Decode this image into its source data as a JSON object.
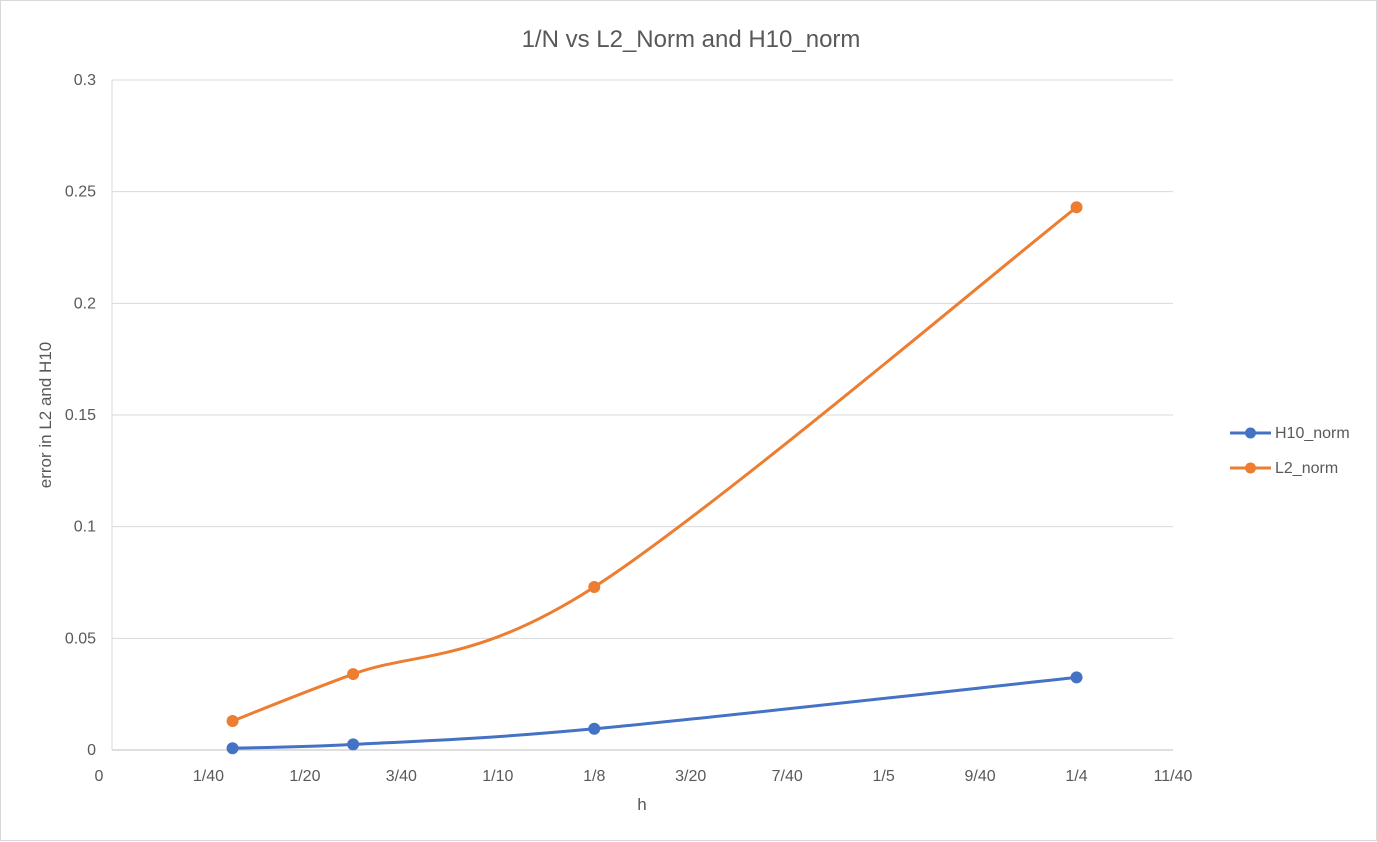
{
  "chart_data": {
    "type": "line",
    "title": "1/N vs L2_Norm and H10_norm",
    "xlabel": "h",
    "ylabel": "error in L2 and H10",
    "xlim": [
      0,
      0.275
    ],
    "ylim": [
      0,
      0.3
    ],
    "x_ticks": [
      {
        "value": 0,
        "label": "0"
      },
      {
        "value": 0.025,
        "label": "1/40"
      },
      {
        "value": 0.05,
        "label": "1/20"
      },
      {
        "value": 0.075,
        "label": "3/40"
      },
      {
        "value": 0.1,
        "label": "1/10"
      },
      {
        "value": 0.125,
        "label": "1/8"
      },
      {
        "value": 0.15,
        "label": "3/20"
      },
      {
        "value": 0.175,
        "label": "7/40"
      },
      {
        "value": 0.2,
        "label": "1/5"
      },
      {
        "value": 0.225,
        "label": "9/40"
      },
      {
        "value": 0.25,
        "label": "1/4"
      },
      {
        "value": 0.275,
        "label": "11/40"
      }
    ],
    "y_ticks": [
      {
        "value": 0,
        "label": "0"
      },
      {
        "value": 0.05,
        "label": "0.05"
      },
      {
        "value": 0.1,
        "label": "0.1"
      },
      {
        "value": 0.15,
        "label": "0.15"
      },
      {
        "value": 0.2,
        "label": "0.2"
      },
      {
        "value": 0.25,
        "label": "0.25"
      },
      {
        "value": 0.3,
        "label": "0.3"
      }
    ],
    "grid": "horizontal",
    "legend_position": "right",
    "smooth": true,
    "series": [
      {
        "name": "H10_norm",
        "color": "#4472c4",
        "points": [
          {
            "x": 0.03125,
            "y": 0.0008
          },
          {
            "x": 0.0625,
            "y": 0.0025
          },
          {
            "x": 0.125,
            "y": 0.0095
          },
          {
            "x": 0.25,
            "y": 0.0325
          }
        ]
      },
      {
        "name": "L2_norm",
        "color": "#ed7d31",
        "points": [
          {
            "x": 0.03125,
            "y": 0.013
          },
          {
            "x": 0.0625,
            "y": 0.034
          },
          {
            "x": 0.125,
            "y": 0.073
          },
          {
            "x": 0.25,
            "y": 0.243
          }
        ]
      }
    ]
  }
}
